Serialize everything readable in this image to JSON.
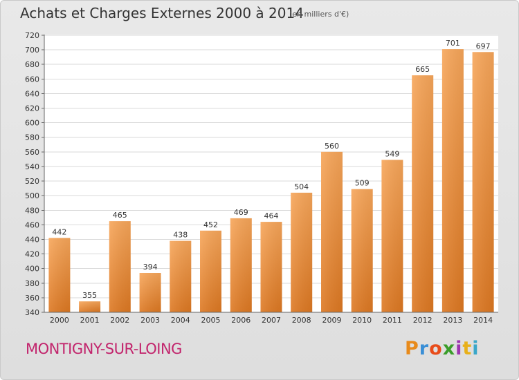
{
  "title": "Achats et Charges Externes 2000 à 2014",
  "subtitle": "(en milliers d'€)",
  "city": "MONTIGNY-SUR-LOING",
  "logo": {
    "letters": [
      "P",
      "r",
      "o",
      "x",
      "i",
      "t",
      "i"
    ],
    "colors": [
      "#e88a1a",
      "#3a8fd6",
      "#e84c1a",
      "#3a9d2a",
      "#9d35b0",
      "#e8b01a",
      "#3aa7c9"
    ]
  },
  "colors": {
    "bar_light": "#f7a65a",
    "bar_dark": "#dd7822",
    "city": "#c2246c"
  },
  "chart_data": {
    "type": "bar",
    "categories": [
      "2000",
      "2001",
      "2002",
      "2003",
      "2004",
      "2005",
      "2006",
      "2007",
      "2008",
      "2009",
      "2010",
      "2011",
      "2012",
      "2013",
      "2014"
    ],
    "values": [
      442,
      355,
      465,
      394,
      438,
      452,
      469,
      464,
      504,
      560,
      509,
      549,
      665,
      701,
      697
    ],
    "ylim": [
      340,
      720
    ],
    "yticks": [
      340,
      360,
      380,
      400,
      420,
      440,
      460,
      480,
      500,
      520,
      540,
      560,
      580,
      600,
      620,
      640,
      660,
      680,
      700,
      720
    ],
    "grid": true,
    "legend": "none"
  }
}
